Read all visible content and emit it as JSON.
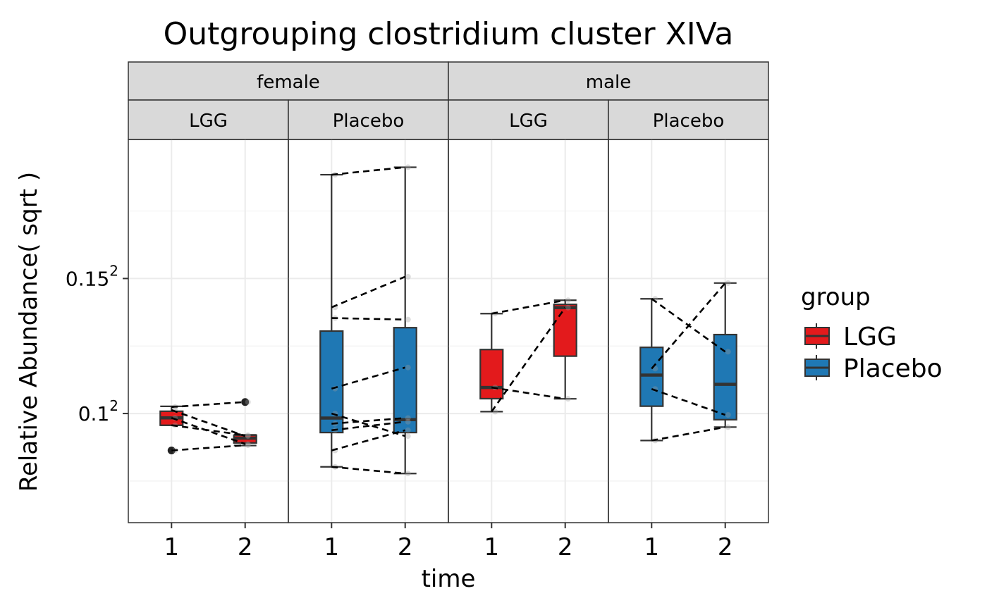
{
  "chart_data": {
    "type": "boxplot",
    "title": "Outgrouping clostridium cluster XIVa",
    "xlabel": "time",
    "ylabel": "Relative Abundance( sqrt )",
    "y_scale": "sqrt",
    "ylim": [
      0.00355,
      0.0406
    ],
    "y_ticks": [
      {
        "value": 0.01,
        "base": "0.1",
        "exp": "2"
      },
      {
        "value": 0.0225,
        "base": "0.15",
        "exp": "2"
      }
    ],
    "x_categories": [
      "1",
      "2"
    ],
    "facet_rows_label": [
      "female",
      "male"
    ],
    "legend": {
      "title": "group",
      "position": "right",
      "entries": [
        {
          "name": "LGG",
          "color": "#e31a1c"
        },
        {
          "name": "Placebo",
          "color": "#1f78b4"
        }
      ]
    },
    "panels": [
      {
        "sex": "female",
        "group": "LGG",
        "color": "#e31a1c",
        "boxes": [
          {
            "time": "1",
            "min": 0.00915,
            "q1": 0.00915,
            "median": 0.00968,
            "q3": 0.01017,
            "max": 0.01054,
            "outliers": [
              0.00745
            ]
          },
          {
            "time": "2",
            "min": 0.00777,
            "q1": 0.00794,
            "median": 0.00826,
            "q3": 0.00846,
            "max": 0.00848,
            "outliers": [
              0.01087
            ]
          }
        ],
        "pairs": [
          [
            0.01049,
            0.01087
          ],
          [
            0.01026,
            0.0084
          ],
          [
            0.00968,
            0.00787
          ],
          [
            0.00915,
            0.00846
          ],
          [
            0.00745,
            0.00779
          ]
        ]
      },
      {
        "sex": "female",
        "group": "Placebo",
        "color": "#1f78b4",
        "boxes": [
          {
            "time": "1",
            "min": 0.00644,
            "q1": 0.00864,
            "median": 0.00967,
            "q3": 0.01704,
            "max": 0.03551,
            "outliers": []
          },
          {
            "time": "2",
            "min": 0.00605,
            "q1": 0.00864,
            "median": 0.00955,
            "q3": 0.01737,
            "max": 0.03656,
            "outliers": []
          }
        ],
        "pairs": [
          [
            0.03551,
            0.03656
          ],
          [
            0.01941,
            0.0227
          ],
          [
            0.01832,
            0.01817
          ],
          [
            0.01193,
            0.0137
          ],
          [
            0.01,
            0.0084
          ],
          [
            0.00926,
            0.00967
          ],
          [
            0.0088,
            0.0094
          ],
          [
            0.00745,
            0.0088
          ],
          [
            0.00644,
            0.00605
          ]
        ]
      },
      {
        "sex": "male",
        "group": "LGG",
        "color": "#e31a1c",
        "boxes": [
          {
            "time": "1",
            "min": 0.01014,
            "q1": 0.01113,
            "median": 0.01202,
            "q3": 0.0153,
            "max": 0.01877,
            "outliers": []
          },
          {
            "time": "2",
            "min": 0.01112,
            "q1": 0.0147,
            "median": 0.01938,
            "q3": 0.01972,
            "max": 0.02015,
            "outliers": []
          }
        ],
        "pairs": [
          [
            0.01877,
            0.02015
          ],
          [
            0.01202,
            0.01112
          ],
          [
            0.01014,
            0.01938
          ]
        ]
      },
      {
        "sex": "male",
        "group": "Placebo",
        "color": "#1f78b4",
        "boxes": [
          {
            "time": "1",
            "min": 0.0081,
            "q1": 0.01055,
            "median": 0.01305,
            "q3": 0.0155,
            "max": 0.0203,
            "outliers": []
          },
          {
            "time": "2",
            "min": 0.00902,
            "q1": 0.00955,
            "median": 0.01228,
            "q3": 0.0167,
            "max": 0.022,
            "outliers": []
          }
        ],
        "pairs": [
          [
            0.0203,
            0.0151
          ],
          [
            0.0136,
            0.022
          ],
          [
            0.0119,
            0.0099
          ],
          [
            0.0081,
            0.00902
          ]
        ]
      }
    ]
  }
}
